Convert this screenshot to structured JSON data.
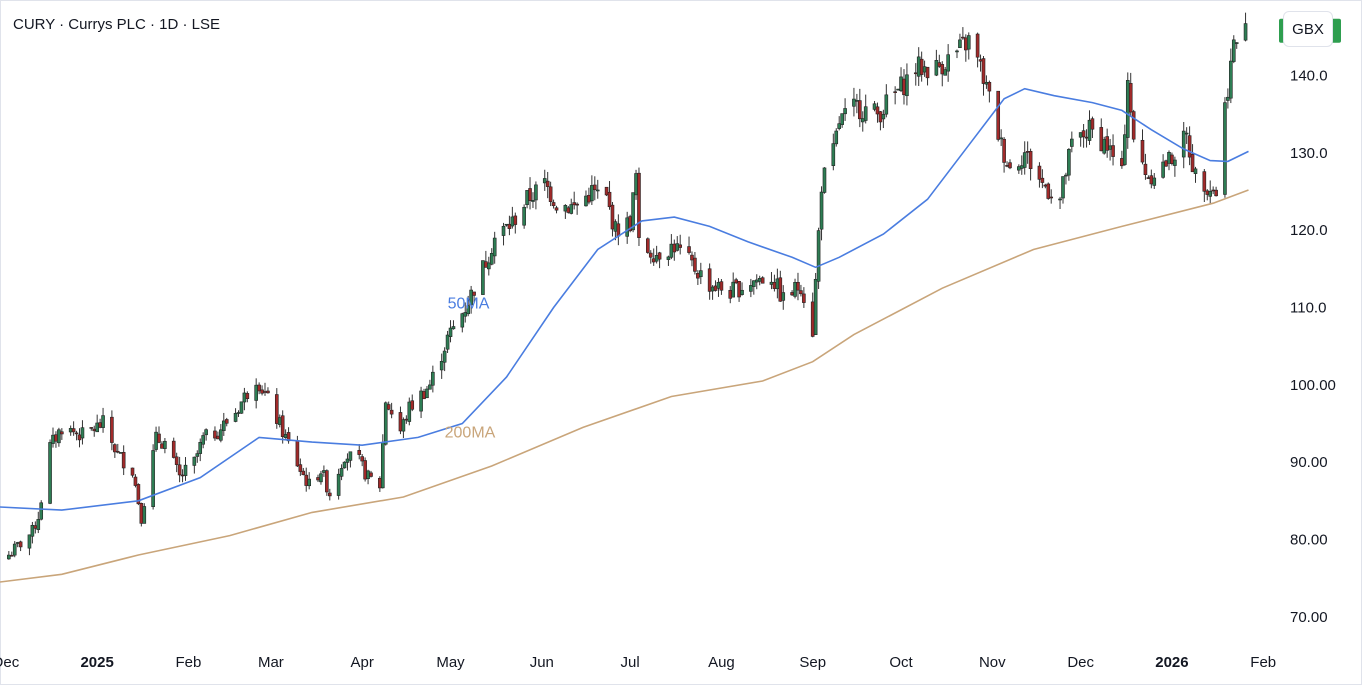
{
  "header": {
    "title": "CURY · Currys PLC · 1D · LSE",
    "currency_button": "GBX"
  },
  "colors": {
    "up": "#089981",
    "up_body": "#2e7d54",
    "down": "#a12a2a",
    "ma50": "#4a7de0",
    "ma200": "#c9a57a",
    "last_price_bg": "#2e9e4f"
  },
  "chart_data": {
    "type": "candlestick",
    "symbol": "CURY",
    "name": "Currys PLC",
    "interval": "1D",
    "exchange": "LSE",
    "currency": "GBX",
    "last_price": 145.8,
    "last_price_label": "145.8",
    "ylim": [
      67,
      149
    ],
    "y_ticks": [
      70,
      80,
      90,
      100,
      110,
      120,
      130,
      140
    ],
    "y_tick_labels": [
      "70.00",
      "80.00",
      "90.00",
      "100.00",
      "110.0",
      "120.0",
      "130.0",
      "140.0"
    ],
    "x_range": [
      "2024-11-29",
      "2026-02-05"
    ],
    "x_ticks": [
      {
        "label": "Dec",
        "date": "2024-12-01",
        "bold": false
      },
      {
        "label": "2025",
        "date": "2025-01-01",
        "bold": true
      },
      {
        "label": "Feb",
        "date": "2025-02-01",
        "bold": false
      },
      {
        "label": "Mar",
        "date": "2025-03-01",
        "bold": false
      },
      {
        "label": "Apr",
        "date": "2025-04-01",
        "bold": false
      },
      {
        "label": "May",
        "date": "2025-05-01",
        "bold": false
      },
      {
        "label": "Jun",
        "date": "2025-06-01",
        "bold": false
      },
      {
        "label": "Jul",
        "date": "2025-07-01",
        "bold": false
      },
      {
        "label": "Aug",
        "date": "2025-08-01",
        "bold": false
      },
      {
        "label": "Sep",
        "date": "2025-09-01",
        "bold": false
      },
      {
        "label": "Oct",
        "date": "2025-10-01",
        "bold": false
      },
      {
        "label": "Nov",
        "date": "2025-11-01",
        "bold": false
      },
      {
        "label": "Dec",
        "date": "2025-12-01",
        "bold": false
      },
      {
        "label": "2026",
        "date": "2026-01-01",
        "bold": true
      },
      {
        "label": "Feb",
        "date": "2026-02-01",
        "bold": false
      }
    ],
    "price_path": [
      [
        "2024-12-02",
        78
      ],
      [
        "2024-12-10",
        81
      ],
      [
        "2024-12-12",
        83
      ],
      [
        "2024-12-16",
        92
      ],
      [
        "2024-12-20",
        94.5
      ],
      [
        "2024-12-27",
        93.5
      ],
      [
        "2025-01-03",
        95
      ],
      [
        "2025-01-08",
        91
      ],
      [
        "2025-01-13",
        89
      ],
      [
        "2025-01-16",
        83
      ],
      [
        "2025-01-21",
        93
      ],
      [
        "2025-01-24",
        92.5
      ],
      [
        "2025-01-29",
        88
      ],
      [
        "2025-02-03",
        90
      ],
      [
        "2025-02-06",
        93
      ],
      [
        "2025-02-11",
        94
      ],
      [
        "2025-02-17",
        96.5
      ],
      [
        "2025-02-24",
        101
      ],
      [
        "2025-02-28",
        98
      ],
      [
        "2025-03-05",
        94
      ],
      [
        "2025-03-11",
        89
      ],
      [
        "2025-03-14",
        87
      ],
      [
        "2025-03-18",
        89
      ],
      [
        "2025-03-21",
        86
      ],
      [
        "2025-03-26",
        91
      ],
      [
        "2025-03-31",
        90
      ],
      [
        "2025-04-03",
        88
      ],
      [
        "2025-04-07",
        87
      ],
      [
        "2025-04-09",
        98
      ],
      [
        "2025-04-14",
        94
      ],
      [
        "2025-04-17",
        97
      ],
      [
        "2025-04-24",
        100
      ],
      [
        "2025-04-30",
        106
      ],
      [
        "2025-05-06",
        110
      ],
      [
        "2025-05-13",
        116
      ],
      [
        "2025-05-16",
        119
      ],
      [
        "2025-05-22",
        121
      ],
      [
        "2025-05-27",
        124
      ],
      [
        "2025-06-02",
        126
      ],
      [
        "2025-06-06",
        123.5
      ],
      [
        "2025-06-12",
        123
      ],
      [
        "2025-06-18",
        125
      ],
      [
        "2025-06-23",
        124
      ],
      [
        "2025-06-26",
        120
      ],
      [
        "2025-07-01",
        121
      ],
      [
        "2025-07-03",
        127
      ],
      [
        "2025-07-04",
        118
      ],
      [
        "2025-07-10",
        117
      ],
      [
        "2025-07-16",
        118
      ],
      [
        "2025-07-22",
        115.5
      ],
      [
        "2025-07-28",
        113
      ],
      [
        "2025-08-04",
        112
      ],
      [
        "2025-08-12",
        113.5
      ],
      [
        "2025-08-18",
        114
      ],
      [
        "2025-08-22",
        111
      ],
      [
        "2025-08-28",
        113
      ],
      [
        "2025-09-01",
        107
      ],
      [
        "2025-09-04",
        126
      ],
      [
        "2025-09-08",
        130
      ],
      [
        "2025-09-10",
        134
      ],
      [
        "2025-09-16",
        136
      ],
      [
        "2025-09-23",
        135
      ],
      [
        "2025-09-30",
        138
      ],
      [
        "2025-10-06",
        141
      ],
      [
        "2025-10-13",
        141
      ],
      [
        "2025-10-20",
        143
      ],
      [
        "2025-10-24",
        144.5
      ],
      [
        "2025-10-28",
        141
      ],
      [
        "2025-10-31",
        137
      ],
      [
        "2025-11-04",
        131
      ],
      [
        "2025-11-07",
        128
      ],
      [
        "2025-11-12",
        130
      ],
      [
        "2025-11-18",
        126
      ],
      [
        "2025-11-24",
        124
      ],
      [
        "2025-11-28",
        131
      ],
      [
        "2025-12-04",
        133
      ],
      [
        "2025-12-10",
        131
      ],
      [
        "2025-12-15",
        127
      ],
      [
        "2025-12-17",
        140
      ],
      [
        "2025-12-19",
        131
      ],
      [
        "2025-12-24",
        127
      ],
      [
        "2025-12-31",
        129
      ],
      [
        "2026-01-06",
        132
      ],
      [
        "2026-01-09",
        127
      ],
      [
        "2026-01-13",
        126
      ],
      [
        "2026-01-16",
        125
      ],
      [
        "2026-01-19",
        136
      ],
      [
        "2026-01-22",
        144
      ],
      [
        "2026-01-26",
        145.8
      ]
    ],
    "ma50": {
      "name": "50MA",
      "points": [
        [
          "2024-11-29",
          84.2
        ],
        [
          "2024-12-20",
          83.8
        ],
        [
          "2025-01-15",
          85
        ],
        [
          "2025-02-05",
          88
        ],
        [
          "2025-02-25",
          93.2
        ],
        [
          "2025-03-15",
          92.6
        ],
        [
          "2025-04-01",
          92.2
        ],
        [
          "2025-04-20",
          93.2
        ],
        [
          "2025-05-05",
          95
        ],
        [
          "2025-05-20",
          101
        ],
        [
          "2025-06-05",
          110
        ],
        [
          "2025-06-20",
          117.5
        ],
        [
          "2025-07-05",
          121.2
        ],
        [
          "2025-07-16",
          121.7
        ],
        [
          "2025-07-28",
          120.5
        ],
        [
          "2025-08-10",
          118.5
        ],
        [
          "2025-08-25",
          116.5
        ],
        [
          "2025-09-02",
          115.2
        ],
        [
          "2025-09-10",
          116.5
        ],
        [
          "2025-09-25",
          119.5
        ],
        [
          "2025-10-10",
          124
        ],
        [
          "2025-10-25",
          131.5
        ],
        [
          "2025-11-05",
          137
        ],
        [
          "2025-11-12",
          138.3
        ],
        [
          "2025-11-22",
          137.4
        ],
        [
          "2025-12-05",
          136.5
        ],
        [
          "2025-12-15",
          135.5
        ],
        [
          "2025-12-25",
          133
        ],
        [
          "2026-01-05",
          130.5
        ],
        [
          "2026-01-14",
          129
        ],
        [
          "2026-01-20",
          128.9
        ],
        [
          "2026-01-27",
          130.2
        ]
      ]
    },
    "ma200": {
      "name": "200MA",
      "points": [
        [
          "2024-11-29",
          74.5
        ],
        [
          "2024-12-20",
          75.5
        ],
        [
          "2025-01-15",
          78
        ],
        [
          "2025-02-15",
          80.5
        ],
        [
          "2025-03-15",
          83.5
        ],
        [
          "2025-04-15",
          85.5
        ],
        [
          "2025-05-15",
          89.5
        ],
        [
          "2025-06-15",
          94.5
        ],
        [
          "2025-07-15",
          98.5
        ],
        [
          "2025-08-15",
          100.5
        ],
        [
          "2025-09-01",
          103
        ],
        [
          "2025-09-15",
          106.5
        ],
        [
          "2025-10-15",
          112.5
        ],
        [
          "2025-11-15",
          117.5
        ],
        [
          "2025-12-15",
          120.5
        ],
        [
          "2026-01-15",
          123.5
        ],
        [
          "2026-01-27",
          125.2
        ]
      ]
    },
    "ma_labels": [
      {
        "text": "50MA",
        "series": "ma50",
        "at": [
          "2025-04-30",
          109.9
        ]
      },
      {
        "text": "200MA",
        "series": "ma200",
        "at": [
          "2025-04-29",
          93.2
        ]
      }
    ],
    "grid": false,
    "legend": "none"
  }
}
